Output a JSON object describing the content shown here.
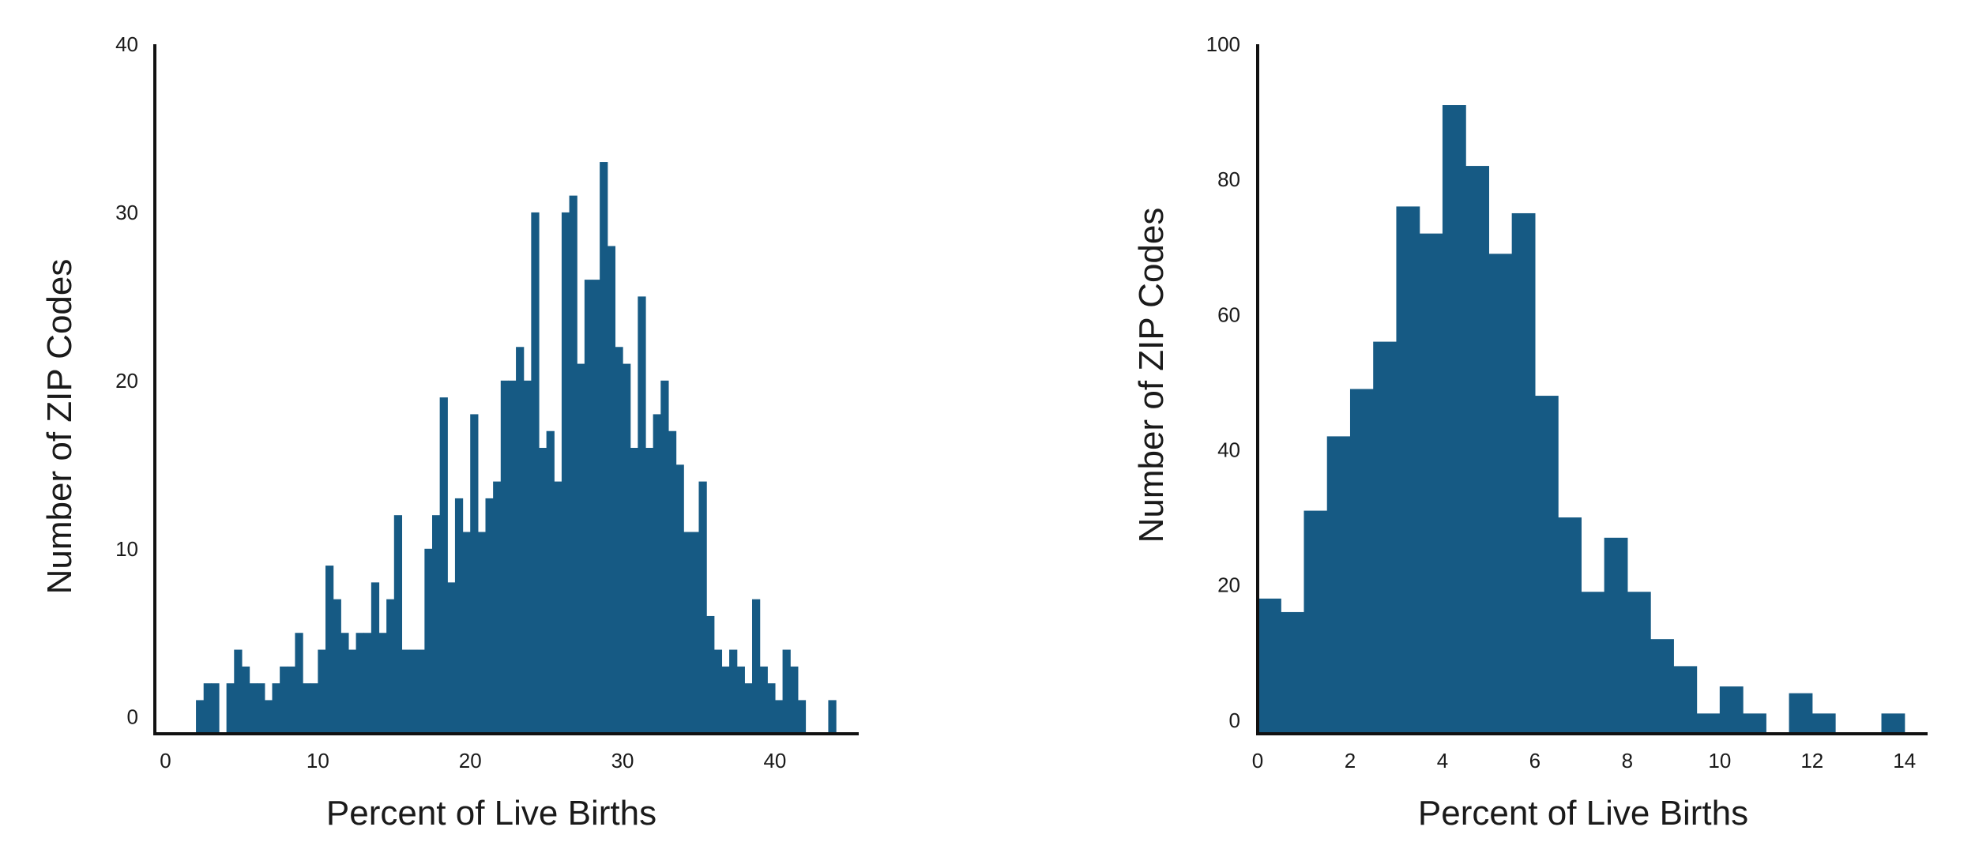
{
  "colors": {
    "bar": "#165a84",
    "axis": "#111111"
  },
  "chart_data": [
    {
      "type": "bar",
      "xlabel": "Percent of Live Births",
      "ylabel": "Number of ZIP Codes",
      "xlim": [
        -0.7,
        45.5
      ],
      "ylim": [
        -1,
        40
      ],
      "bin_width": 0.5,
      "xticks": [
        0,
        10,
        20,
        30,
        40
      ],
      "yticks": [
        0,
        10,
        20,
        30,
        40
      ],
      "grid": false,
      "legend": "none",
      "bins": [
        [
          2.0,
          1
        ],
        [
          2.5,
          2
        ],
        [
          3.0,
          2
        ],
        [
          4.0,
          2
        ],
        [
          4.5,
          4
        ],
        [
          5.0,
          3
        ],
        [
          5.5,
          2
        ],
        [
          6.0,
          2
        ],
        [
          6.5,
          1
        ],
        [
          7.0,
          2
        ],
        [
          7.5,
          3
        ],
        [
          8.0,
          3
        ],
        [
          8.5,
          5
        ],
        [
          9.0,
          2
        ],
        [
          9.5,
          2
        ],
        [
          10.0,
          4
        ],
        [
          10.5,
          9
        ],
        [
          11.0,
          7
        ],
        [
          11.5,
          5
        ],
        [
          12.0,
          4
        ],
        [
          12.5,
          5
        ],
        [
          13.0,
          5
        ],
        [
          13.5,
          8
        ],
        [
          14.0,
          5
        ],
        [
          14.5,
          7
        ],
        [
          15.0,
          12
        ],
        [
          15.5,
          4
        ],
        [
          16.0,
          4
        ],
        [
          16.5,
          4
        ],
        [
          17.0,
          10
        ],
        [
          17.5,
          12
        ],
        [
          18.0,
          19
        ],
        [
          18.5,
          8
        ],
        [
          19.0,
          13
        ],
        [
          19.5,
          11
        ],
        [
          20.0,
          18
        ],
        [
          20.5,
          11
        ],
        [
          21.0,
          13
        ],
        [
          21.5,
          14
        ],
        [
          22.0,
          20
        ],
        [
          22.5,
          20
        ],
        [
          23.0,
          22
        ],
        [
          23.5,
          20
        ],
        [
          24.0,
          30
        ],
        [
          24.5,
          16
        ],
        [
          25.0,
          17
        ],
        [
          25.5,
          14
        ],
        [
          26.0,
          30
        ],
        [
          26.5,
          31
        ],
        [
          27.0,
          21
        ],
        [
          27.5,
          26
        ],
        [
          28.0,
          26
        ],
        [
          28.5,
          33
        ],
        [
          29.0,
          28
        ],
        [
          29.5,
          22
        ],
        [
          30.0,
          21
        ],
        [
          30.5,
          16
        ],
        [
          31.0,
          25
        ],
        [
          31.5,
          16
        ],
        [
          32.0,
          18
        ],
        [
          32.5,
          20
        ],
        [
          33.0,
          17
        ],
        [
          33.5,
          15
        ],
        [
          34.0,
          11
        ],
        [
          34.5,
          11
        ],
        [
          35.0,
          14
        ],
        [
          35.5,
          6
        ],
        [
          36.0,
          4
        ],
        [
          36.5,
          3
        ],
        [
          37.0,
          4
        ],
        [
          37.5,
          3
        ],
        [
          38.0,
          2
        ],
        [
          38.5,
          7
        ],
        [
          39.0,
          3
        ],
        [
          39.5,
          2
        ],
        [
          40.0,
          1
        ],
        [
          40.5,
          4
        ],
        [
          41.0,
          3
        ],
        [
          41.5,
          1
        ],
        [
          43.5,
          1
        ]
      ]
    },
    {
      "type": "bar",
      "xlabel": "Percent of Live Births",
      "ylabel": "Number of ZIP Codes",
      "xlim": [
        0,
        14.5
      ],
      "ylim": [
        -2,
        100
      ],
      "bin_width": 0.5,
      "xticks": [
        0,
        2,
        4,
        6,
        8,
        10,
        12,
        14
      ],
      "yticks": [
        0,
        20,
        40,
        60,
        80,
        100
      ],
      "grid": false,
      "legend": "none",
      "bins": [
        [
          0.0,
          18
        ],
        [
          0.5,
          16
        ],
        [
          1.0,
          31
        ],
        [
          1.5,
          42
        ],
        [
          2.0,
          49
        ],
        [
          2.5,
          56
        ],
        [
          3.0,
          76
        ],
        [
          3.5,
          72
        ],
        [
          4.0,
          91
        ],
        [
          4.5,
          82
        ],
        [
          5.0,
          69
        ],
        [
          5.5,
          75
        ],
        [
          6.0,
          48
        ],
        [
          6.5,
          30
        ],
        [
          7.0,
          19
        ],
        [
          7.5,
          27
        ],
        [
          8.0,
          19
        ],
        [
          8.5,
          12
        ],
        [
          9.0,
          8
        ],
        [
          9.5,
          1
        ],
        [
          10.0,
          5
        ],
        [
          10.5,
          1
        ],
        [
          11.0,
          0
        ],
        [
          11.5,
          4
        ],
        [
          12.0,
          1
        ],
        [
          12.5,
          0
        ],
        [
          13.0,
          0
        ],
        [
          13.5,
          1
        ]
      ]
    }
  ]
}
